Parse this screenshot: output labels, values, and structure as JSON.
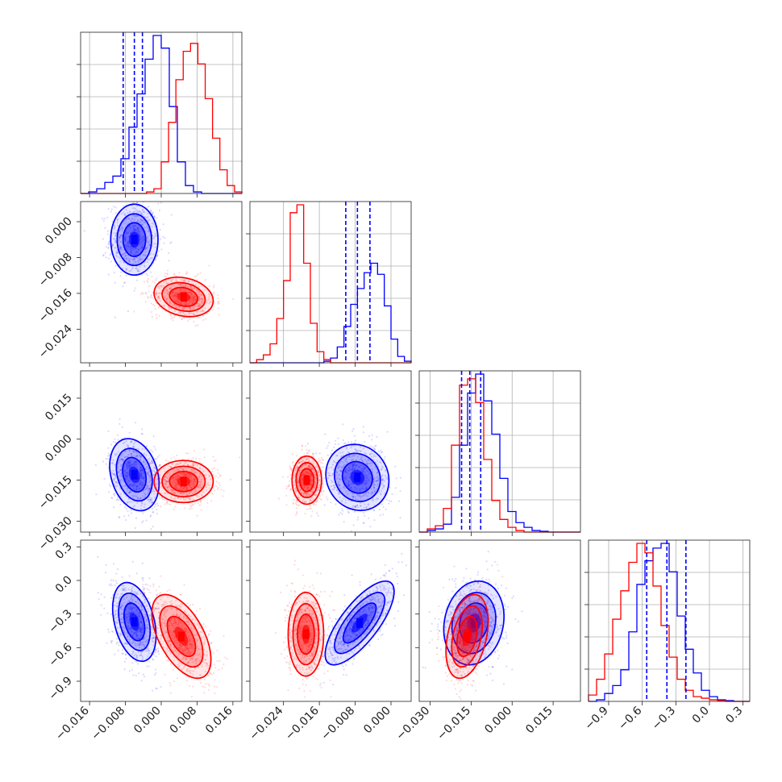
{
  "chart_data": {
    "type": "corner",
    "title": "",
    "colors": {
      "blue": "#0000ff",
      "red": "#ff0000"
    },
    "params": [
      {
        "range": [
          -0.018,
          0.018
        ],
        "ticks": [
          -0.016,
          -0.008,
          0.0,
          0.008,
          0.016
        ],
        "tick_labels": [
          "−0.016",
          "−0.008",
          "0.000",
          "0.008",
          "0.016"
        ],
        "quantiles_blue": [
          -0.0085,
          -0.006,
          -0.0042
        ]
      },
      {
        "range": [
          -0.0315,
          0.0045
        ],
        "ticks": [
          -0.024,
          -0.016,
          -0.008,
          0.0
        ],
        "tick_labels": [
          "−0.024",
          "−0.016",
          "−0.008",
          "0.000"
        ],
        "quantiles_blue": [
          -0.0101,
          -0.0075,
          -0.0047
        ]
      },
      {
        "range": [
          -0.034,
          0.025
        ],
        "ticks": [
          -0.03,
          -0.015,
          0.0,
          0.015
        ],
        "tick_labels": [
          "−0.030",
          "−0.015",
          "0.000",
          "0.015"
        ],
        "quantiles_blue": [
          -0.0185,
          -0.0155,
          -0.0115
        ]
      },
      {
        "range": [
          -1.08,
          0.36
        ],
        "ticks": [
          -0.9,
          -0.6,
          -0.3,
          0.0,
          0.3
        ],
        "tick_labels": [
          "−0.9",
          "−0.6",
          "−0.3",
          "0.0",
          "0.3"
        ],
        "quantiles_blue": [
          -0.56,
          -0.38,
          -0.21
        ]
      }
    ],
    "histograms": [
      {
        "bins": [
          -0.018,
          0.018
        ],
        "blue": [
          0,
          0.01,
          0.03,
          0.07,
          0.11,
          0.22,
          0.42,
          0.63,
          0.85,
          1.0,
          0.92,
          0.55,
          0.2,
          0.05,
          0.01,
          0,
          0,
          0,
          0,
          0
        ],
        "red": [
          0,
          0,
          0,
          0,
          0,
          0,
          0,
          0,
          0,
          0.01,
          0.03,
          0.2,
          0.45,
          0.72,
          0.9,
          0.95,
          0.82,
          0.6,
          0.35,
          0.15,
          0.05,
          0.01
        ],
        "red_bins": [
          -0.018,
          0.018
        ]
      },
      {
        "bins": [
          -0.0315,
          0.0045
        ],
        "blue": [
          0,
          0,
          0,
          0,
          0,
          0,
          0,
          0,
          0,
          0,
          0,
          0.01,
          0.03,
          0.1,
          0.23,
          0.37,
          0.47,
          0.57,
          0.63,
          0.56,
          0.36,
          0.15,
          0.04,
          0.01
        ],
        "red": [
          0,
          0.02,
          0.05,
          0.12,
          0.28,
          0.52,
          0.95,
          1.0,
          0.63,
          0.25,
          0.07,
          0.02,
          0,
          0,
          0,
          0,
          0,
          0,
          0,
          0,
          0,
          0,
          0,
          0
        ]
      },
      {
        "bins": [
          -0.034,
          0.025
        ],
        "blue": [
          0,
          0.01,
          0.02,
          0.05,
          0.22,
          0.55,
          0.88,
          1.0,
          0.83,
          0.62,
          0.34,
          0.13,
          0.06,
          0.03,
          0.01,
          0.005,
          0,
          0,
          0,
          0
        ],
        "red": [
          0,
          0.02,
          0.04,
          0.15,
          0.55,
          0.93,
          0.97,
          0.82,
          0.46,
          0.2,
          0.08,
          0.03,
          0.01,
          0,
          0,
          0,
          0,
          0,
          0,
          0
        ]
      },
      {
        "bins": [
          -1.08,
          0.36
        ],
        "blue": [
          0,
          0.01,
          0.05,
          0.1,
          0.2,
          0.44,
          0.74,
          0.89,
          0.97,
          1.0,
          0.82,
          0.54,
          0.33,
          0.18,
          0.07,
          0.03,
          0.01,
          0.005,
          0,
          0
        ],
        "red": [
          0.04,
          0.14,
          0.3,
          0.52,
          0.7,
          0.88,
          1.0,
          0.94,
          0.73,
          0.48,
          0.28,
          0.14,
          0.07,
          0.03,
          0.02,
          0.01,
          0.005,
          0,
          0,
          0
        ]
      }
    ],
    "clusters": [
      {
        "i": 1,
        "j": 0,
        "blue": {
          "mx": -0.006,
          "my": -0.004,
          "sx": 0.0024,
          "sy": 0.0036,
          "rho": 0.0
        },
        "red": {
          "mx": 0.005,
          "my": -0.0168,
          "sx": 0.003,
          "sy": 0.002,
          "rho": -0.2
        }
      },
      {
        "i": 2,
        "j": 0,
        "blue": {
          "mx": -0.006,
          "my": -0.013,
          "sx": 0.0025,
          "sy": 0.006,
          "rho": -0.25
        },
        "red": {
          "mx": 0.005,
          "my": -0.0155,
          "sx": 0.003,
          "sy": 0.0035,
          "rho": 0.0
        }
      },
      {
        "i": 2,
        "j": 1,
        "blue": {
          "mx": -0.0075,
          "my": -0.014,
          "sx": 0.0032,
          "sy": 0.0055,
          "rho": -0.1
        },
        "red": {
          "mx": -0.0188,
          "my": -0.015,
          "sx": 0.0015,
          "sy": 0.004,
          "rho": 0.0
        }
      },
      {
        "i": 3,
        "j": 0,
        "blue": {
          "mx": -0.006,
          "my": -0.37,
          "sx": 0.0022,
          "sy": 0.16,
          "rho": -0.35
        },
        "red": {
          "mx": 0.0045,
          "my": -0.5,
          "sx": 0.003,
          "sy": 0.17,
          "rho": -0.55
        }
      },
      {
        "i": 3,
        "j": 1,
        "blue": {
          "mx": -0.007,
          "my": -0.38,
          "sx": 0.0035,
          "sy": 0.17,
          "rho": 0.75
        },
        "red": {
          "mx": -0.019,
          "my": -0.48,
          "sx": 0.0018,
          "sy": 0.17,
          "rho": 0.0
        }
      },
      {
        "i": 3,
        "j": 2,
        "blue": {
          "mx": -0.014,
          "my": -0.38,
          "sx": 0.005,
          "sy": 0.17,
          "rho": 0.15
        },
        "red": {
          "mx": -0.0165,
          "my": -0.5,
          "sx": 0.0035,
          "sy": 0.17,
          "rho": 0.35
        }
      }
    ]
  }
}
